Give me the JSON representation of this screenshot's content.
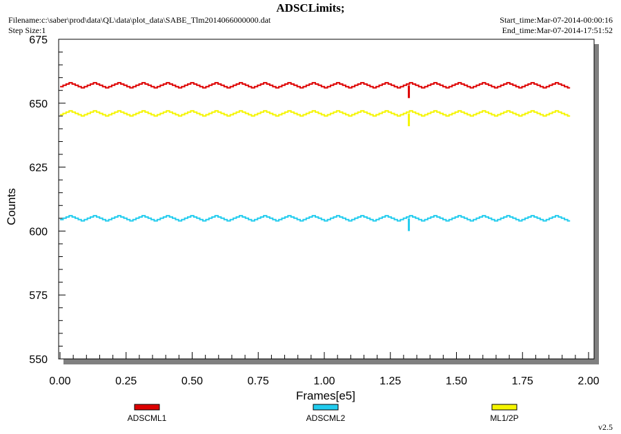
{
  "header": {
    "title": "ADSCLimits;",
    "filename": "Filename:c:\\saber\\prod\\data\\QL\\data\\plot_data\\SABE_Tlm2014066000000.dat",
    "step_size": "Step Size:1",
    "start_time": "Start_time:Mar-07-2014-00:00:16",
    "end_time": "End_time:Mar-07-2014-17:51:52",
    "version": "v2.5"
  },
  "chart_data": {
    "type": "line",
    "xlabel": "Frames[e5]",
    "ylabel": "Counts",
    "xlim": [
      0,
      2.0
    ],
    "ylim": [
      550,
      675
    ],
    "xticks": [
      "0.00",
      "0.25",
      "0.50",
      "0.75",
      "1.00",
      "1.25",
      "1.50",
      "1.75",
      "2.00"
    ],
    "yticks": [
      "550",
      "575",
      "600",
      "625",
      "650",
      "675"
    ],
    "grid": false,
    "legend_position": "bottom",
    "x_range_data": [
      0.0,
      1.93
    ],
    "spike_x": 1.32,
    "series": [
      {
        "name": "ADSCML1",
        "color": "#dd0000",
        "baseline": 657,
        "amplitude": 1,
        "spike_to": 652
      },
      {
        "name": "ADSCML2",
        "color": "#22ccee",
        "baseline": 605,
        "amplitude": 1,
        "spike_to": 600
      },
      {
        "name": "ML1/2P",
        "color": "#f5f500",
        "baseline": 646,
        "amplitude": 1,
        "spike_to": 641
      }
    ]
  }
}
